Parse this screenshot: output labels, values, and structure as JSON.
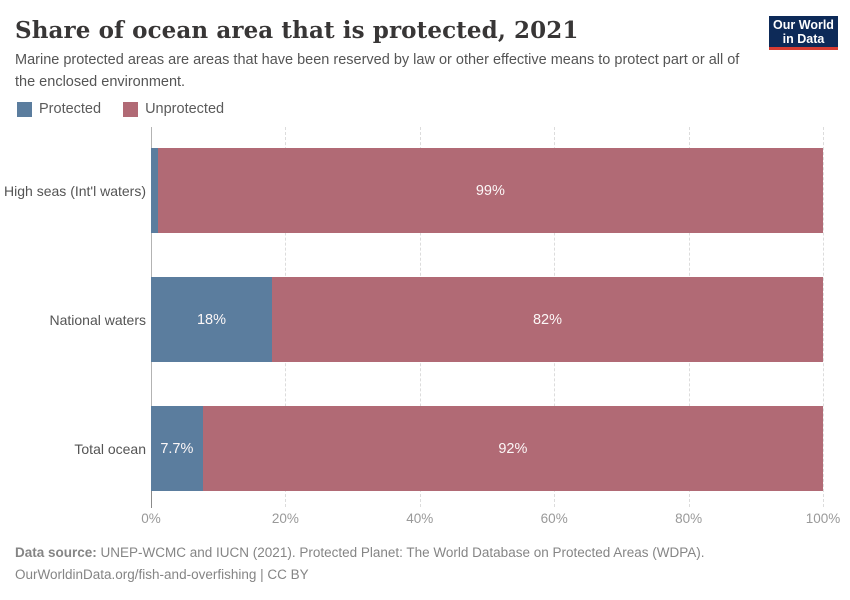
{
  "header": {
    "title": "Share of ocean area that is protected, 2021",
    "subtitle": "Marine protected areas are areas that have been reserved by law or other effective means to protect part or all of the enclosed environment.",
    "logo": {
      "line1": "Our World",
      "line2": "in Data"
    },
    "logo_colors": {
      "background": "#0d2a58",
      "underline": "#d73c32"
    }
  },
  "legend": [
    {
      "label": "Protected",
      "color": "#5b7d9e"
    },
    {
      "label": "Unprotected",
      "color": "#b16a75"
    }
  ],
  "chart_data": {
    "type": "bar",
    "stacked": true,
    "orientation": "horizontal",
    "title": "Share of ocean area that is protected, 2021",
    "categories": [
      "High seas (Int'l waters)",
      "National waters",
      "Total ocean"
    ],
    "series": [
      {
        "name": "Protected",
        "color": "#5b7d9e",
        "values": [
          1,
          18,
          7.7
        ],
        "labels": [
          "",
          "18%",
          "7.7%"
        ]
      },
      {
        "name": "Unprotected",
        "color": "#b16a75",
        "values": [
          99,
          82,
          92.3
        ],
        "labels": [
          "99%",
          "82%",
          "92%"
        ]
      }
    ],
    "xlim": [
      0,
      100
    ],
    "x_ticks": [
      "0%",
      "20%",
      "40%",
      "60%",
      "80%",
      "100%"
    ],
    "grid": "dashed-vertical-gridlines",
    "legend_position": "top-left"
  },
  "footer": {
    "source_label": "Data source:",
    "source_text": " UNEP-WCMC and IUCN (2021). Protected Planet: The World Database on Protected Areas (WDPA).",
    "link_line": "OurWorldinData.org/fish-and-overfishing | CC BY"
  }
}
